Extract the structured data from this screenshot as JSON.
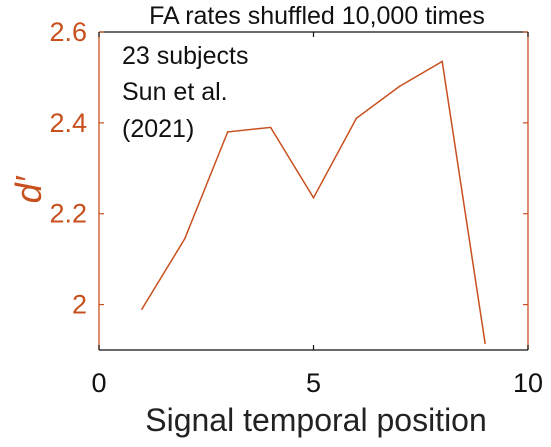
{
  "chart_data": {
    "type": "line",
    "title": "FA rates shuffled 10,000 times",
    "xlabel": "Signal temporal position",
    "ylabel": "d′",
    "xlim": [
      0,
      10
    ],
    "ylim": [
      1.9,
      2.6
    ],
    "xticks": [
      0,
      5,
      10
    ],
    "yticks": [
      2,
      2.2,
      2.4,
      2.6
    ],
    "xtick_labels": [
      "0",
      "5",
      "10"
    ],
    "ytick_labels": [
      "2",
      "2.2",
      "2.4",
      "2.6"
    ],
    "grid": false,
    "annotations": [
      "23 subjects",
      "Sun et al.",
      "(2021)"
    ],
    "series": [
      {
        "x": [
          1,
          2,
          3,
          4,
          5,
          6,
          7,
          8,
          9
        ],
        "y": [
          1.99,
          2.145,
          2.38,
          2.39,
          2.235,
          2.41,
          2.48,
          2.535,
          1.915
        ]
      }
    ]
  },
  "colors": {
    "series": "#c8501e",
    "yaxis": "#c8501e",
    "xaxis": "#111111",
    "text": "#111111"
  }
}
